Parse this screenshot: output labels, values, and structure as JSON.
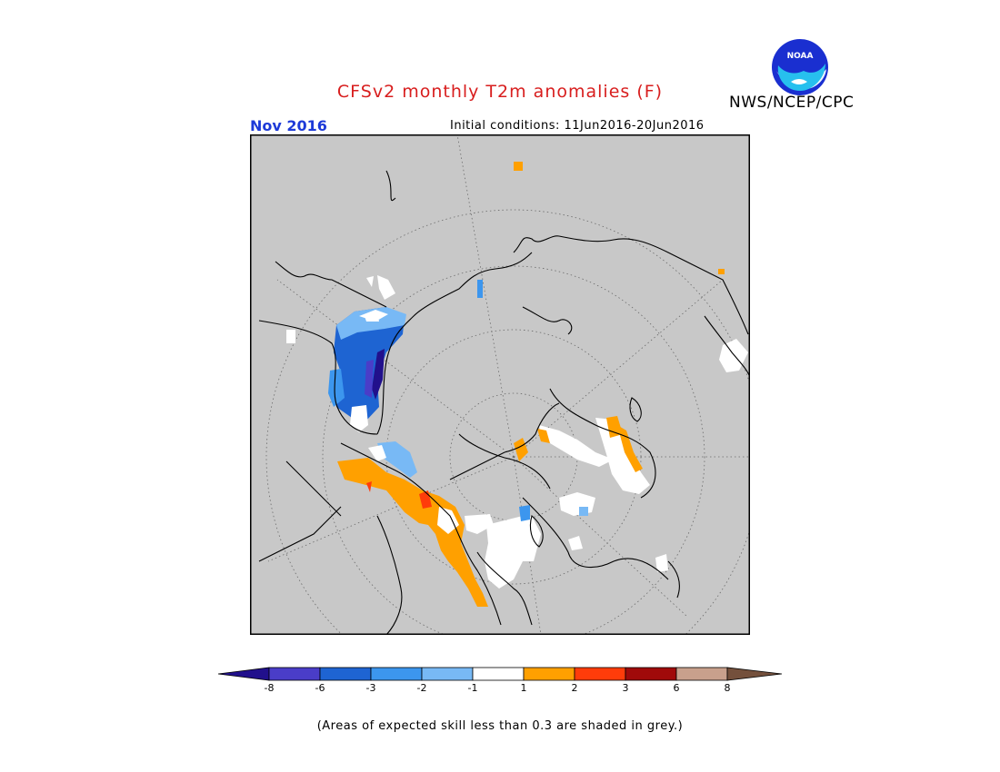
{
  "header": {
    "title": "CFSv2 monthly T2m anomalies (F)",
    "agency": "NWS/NCEP/CPC",
    "month": "Nov 2016",
    "initial_conditions": "Initial conditions: 11Jun2016-20Jun2016",
    "logo_text": "NOAA"
  },
  "colorbar": {
    "labels": [
      "-8",
      "-6",
      "-3",
      "-2",
      "-1",
      "1",
      "2",
      "3",
      "6",
      "8"
    ],
    "colors": {
      "lt_minus_8": "#21108c",
      "m8_m6": "#4a3dc8",
      "m6_m3": "#1e64d2",
      "m3_m2": "#3c96ee",
      "m2_m1": "#78b9f5",
      "m1_1": "#ffffff",
      "p1_p2": "#ffa000",
      "p2_p3": "#ff3c0a",
      "p3_p6": "#a00a0a",
      "p6_p8": "#c8a08c",
      "gt_8": "#74503c"
    }
  },
  "footnote": "(Areas of expected skill less than 0.3 are shaded in grey.)",
  "map_colors": {
    "skill_mask": "#c8c8c8",
    "coast": "#000000"
  }
}
